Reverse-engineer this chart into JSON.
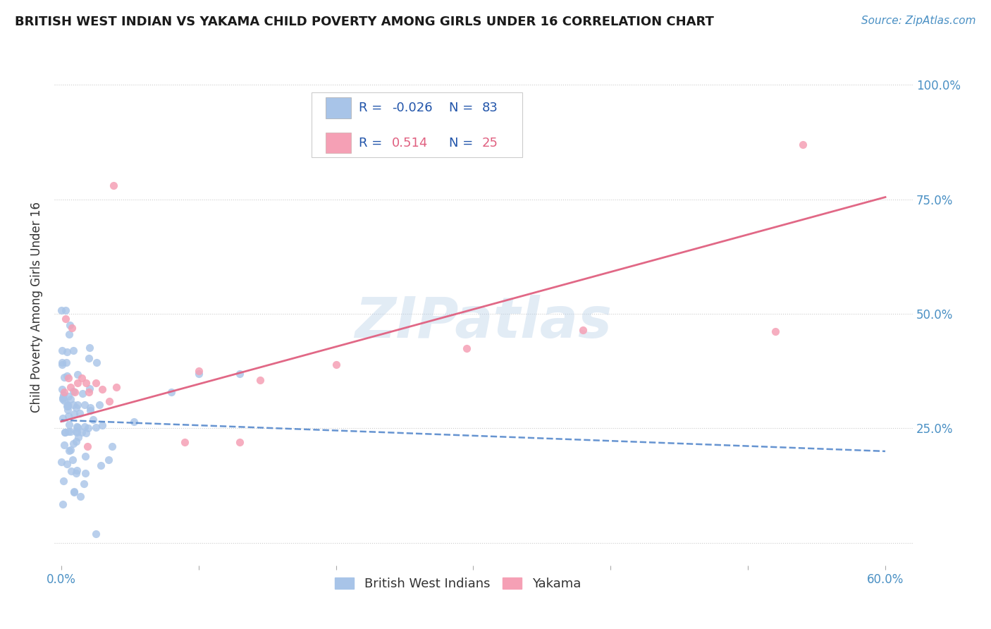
{
  "title": "BRITISH WEST INDIAN VS YAKAMA CHILD POVERTY AMONG GIRLS UNDER 16 CORRELATION CHART",
  "source": "Source: ZipAtlas.com",
  "ylabel": "Child Poverty Among Girls Under 16",
  "xlim": [
    -0.005,
    0.62
  ],
  "ylim": [
    -0.05,
    1.08
  ],
  "blue_color": "#a8c4e8",
  "pink_color": "#f5a0b5",
  "blue_line_color": "#5588cc",
  "pink_line_color": "#e06080",
  "watermark": "ZIPatlas",
  "legend_label_blue": "British West Indians",
  "legend_label_pink": "Yakama",
  "blue_R_text": "-0.026",
  "blue_N_text": "83",
  "pink_R_text": "0.514",
  "pink_N_text": "25"
}
